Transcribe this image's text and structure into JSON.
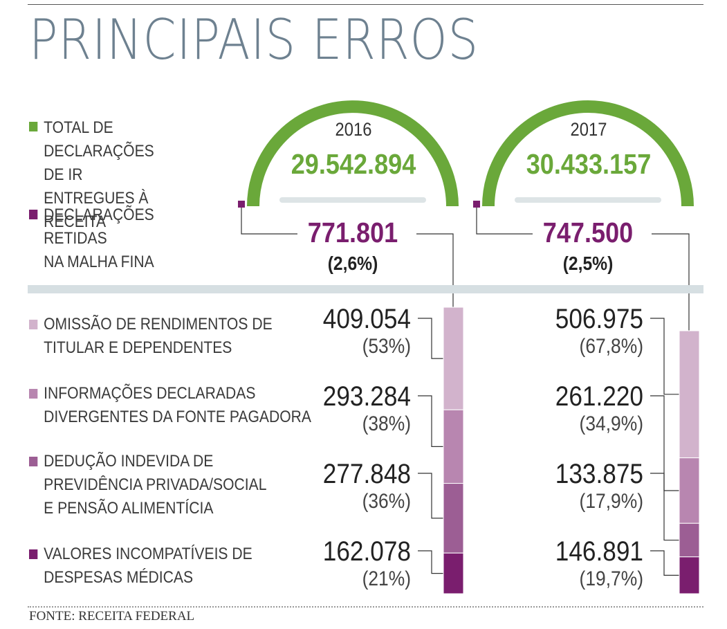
{
  "title": "PRINCIPAIS ERROS",
  "legend": {
    "total": "TOTAL DE\nDECLARAÇÕES DE IR\nENTREGUES À RECEITA",
    "retained": "DECLARAÇÕES RETIDAS\nNA MALHA FINA"
  },
  "colors": {
    "total": "#6aa83a",
    "retained": "#7a1e6e",
    "cat1": "#d2b3cc",
    "cat2": "#b886b0",
    "cat3": "#9c5e94",
    "cat4": "#7a1e6e",
    "title": "#6e8190",
    "separator": "#d6dfe2"
  },
  "source": "FONTE: RECEITA FEDERAL",
  "chart_data": {
    "type": "bar",
    "title": "PRINCIPAIS ERROS",
    "years": [
      {
        "year": "2016",
        "total": "29.542.894",
        "retained": "771.801",
        "retained_pct": "(2,6%)",
        "values": [
          409054,
          293284,
          277848,
          162078
        ],
        "labels": [
          "409.054",
          "293.284",
          "277.848",
          "162.078"
        ],
        "pcts": [
          "(53%)",
          "(38%)",
          "(36%)",
          "(21%)"
        ]
      },
      {
        "year": "2017",
        "total": "30.433.157",
        "retained": "747.500",
        "retained_pct": "(2,5%)",
        "values": [
          506975,
          261220,
          133875,
          146891
        ],
        "labels": [
          "506.975",
          "261.220",
          "133.875",
          "146.891"
        ],
        "pcts": [
          "(67,8%)",
          "(34,9%)",
          "(17,9%)",
          "(19,7%)"
        ]
      }
    ],
    "categories": [
      "OMISSÃO DE RENDIMENTOS DE\nTITULAR E DEPENDENTES",
      "INFORMAÇÕES DECLARADAS\nDIVERGENTES DA FONTE PAGADORA",
      "DEDUÇÃO INDEVIDA DE\nPREVIDÊNCIA PRIVADA/SOCIAL\nE PENSÃO ALIMENTÍCIA",
      "VALORES INCOMPATÍVEIS DE\nDESPESAS MÉDICAS"
    ]
  }
}
